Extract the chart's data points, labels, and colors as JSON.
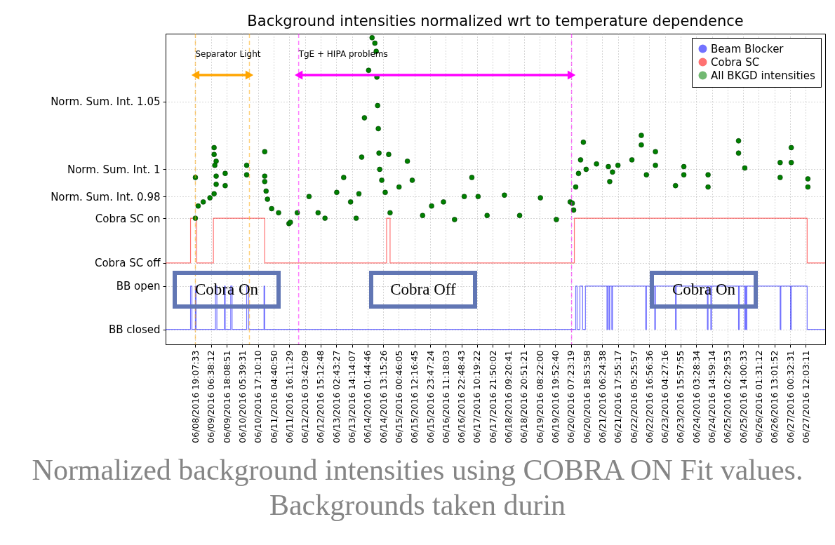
{
  "chart_data": {
    "type": "scatter",
    "title": "Background intensities normalized wrt to temperature dependence",
    "xlim": [
      "2016-06-07T21:12",
      "2016-06-28T02:19"
    ],
    "xticks": [
      {
        "value": "2016-06-08T19:07:33",
        "label": "06/08/2016 19:07:33"
      },
      {
        "value": "2016-06-09T06:38:12",
        "label": "06/09/2016 06:38:12"
      },
      {
        "value": "2016-06-09T18:08:51",
        "label": "06/09/2016 18:08:51"
      },
      {
        "value": "2016-06-10T05:39:31",
        "label": "06/10/2016 05:39:31"
      },
      {
        "value": "2016-06-10T17:10:10",
        "label": "06/10/2016 17:10:10"
      },
      {
        "value": "2016-06-11T04:40:50",
        "label": "06/11/2016 04:40:50"
      },
      {
        "value": "2016-06-11T16:11:29",
        "label": "06/11/2016 16:11:29"
      },
      {
        "value": "2016-06-12T03:42:09",
        "label": "06/12/2016 03:42:09"
      },
      {
        "value": "2016-06-12T15:12:48",
        "label": "06/12/2016 15:12:48"
      },
      {
        "value": "2016-06-13T02:43:27",
        "label": "06/13/2016 02:43:27"
      },
      {
        "value": "2016-06-13T14:14:07",
        "label": "06/13/2016 14:14:07"
      },
      {
        "value": "2016-06-14T01:44:46",
        "label": "06/14/2016 01:44:46"
      },
      {
        "value": "2016-06-14T13:15:26",
        "label": "06/14/2016 13:15:26"
      },
      {
        "value": "2016-06-15T00:46:05",
        "label": "06/15/2016 00:46:05"
      },
      {
        "value": "2016-06-15T12:16:45",
        "label": "06/15/2016 12:16:45"
      },
      {
        "value": "2016-06-15T23:47:24",
        "label": "06/15/2016 23:47:24"
      },
      {
        "value": "2016-06-16T11:18:03",
        "label": "06/16/2016 11:18:03"
      },
      {
        "value": "2016-06-16T22:48:43",
        "label": "06/16/2016 22:48:43"
      },
      {
        "value": "2016-06-17T10:19:22",
        "label": "06/17/2016 10:19:22"
      },
      {
        "value": "2016-06-17T21:50:02",
        "label": "06/17/2016 21:50:02"
      },
      {
        "value": "2016-06-18T09:20:41",
        "label": "06/18/2016 09:20:41"
      },
      {
        "value": "2016-06-18T20:51:21",
        "label": "06/18/2016 20:51:21"
      },
      {
        "value": "2016-06-19T08:22:00",
        "label": "06/19/2016 08:22:00"
      },
      {
        "value": "2016-06-19T19:52:40",
        "label": "06/19/2016 19:52:40"
      },
      {
        "value": "2016-06-20T07:23:19",
        "label": "06/20/2016 07:23:19"
      },
      {
        "value": "2016-06-20T18:53:58",
        "label": "06/20/2016 18:53:58"
      },
      {
        "value": "2016-06-21T06:24:38",
        "label": "06/21/2016 06:24:38"
      },
      {
        "value": "2016-06-21T17:55:17",
        "label": "06/21/2016 17:55:17"
      },
      {
        "value": "2016-06-22T05:25:57",
        "label": "06/22/2016 05:25:57"
      },
      {
        "value": "2016-06-22T16:56:36",
        "label": "06/22/2016 16:56:36"
      },
      {
        "value": "2016-06-23T04:27:16",
        "label": "06/23/2016 04:27:16"
      },
      {
        "value": "2016-06-23T15:57:55",
        "label": "06/23/2016 15:57:55"
      },
      {
        "value": "2016-06-24T03:28:34",
        "label": "06/24/2016 03:28:34"
      },
      {
        "value": "2016-06-24T14:59:14",
        "label": "06/24/2016 14:59:14"
      },
      {
        "value": "2016-06-25T02:29:53",
        "label": "06/25/2016 02:29:53"
      },
      {
        "value": "2016-06-25T14:00:33",
        "label": "06/25/2016 14:00:33"
      },
      {
        "value": "2016-06-26T01:31:12",
        "label": "06/26/2016 01:31:12"
      },
      {
        "value": "2016-06-26T13:01:52",
        "label": "06/26/2016 13:01:52"
      },
      {
        "value": "2016-06-27T00:32:31",
        "label": "06/27/2016 00:32:31"
      },
      {
        "value": "2016-06-27T12:03:11",
        "label": "06/27/2016 12:03:11"
      }
    ],
    "ylim": [
      0.871,
      1.1
    ],
    "yticks": [
      {
        "value": 1.05,
        "label": "Norm. Sum. Int. 1.05"
      },
      {
        "value": 1,
        "label": "Norm. Sum. Int. 1"
      },
      {
        "value": 0.98,
        "label": "Norm. Sum. Int. 0.98"
      },
      {
        "value": 0.964,
        "label": "Cobra SC on"
      },
      {
        "value": 0.931,
        "label": "Cobra SC off"
      },
      {
        "value": 0.914,
        "label": "BB open"
      },
      {
        "value": 0.882,
        "label": "BB closed"
      }
    ],
    "grid": true,
    "legend": "top right",
    "series": [
      {
        "name": "Beam Blocker",
        "type": "step",
        "color": "#0000ff",
        "x": [
          "2016-06-07T21:12",
          "2016-06-08T15:33",
          "2016-06-08T16:34",
          "2016-06-08T19:07",
          "2016-06-08T19:38",
          "2016-06-09T09:54",
          "2016-06-09T10:55",
          "2016-06-09T16:31",
          "2016-06-09T17:02",
          "2016-06-09T21:06",
          "2016-06-09T22:07",
          "2016-06-10T08:50",
          "2016-06-10T10:22",
          "2016-06-10T21:35",
          "2016-06-10T22:06",
          "2016-06-20T10:51",
          "2016-06-20T11:52",
          "2016-06-20T13:55",
          "2016-06-20T15:57",
          "2016-06-20T17:59",
          "2016-06-21T09:50",
          "2016-06-21T10:20",
          "2016-06-21T11:22",
          "2016-06-21T11:52",
          "2016-06-21T13:23",
          "2016-06-21T13:53",
          "2016-06-22T14:21",
          "2016-06-22T14:51",
          "2016-06-22T20:58",
          "2016-06-22T21:28",
          "2016-06-23T12:14",
          "2016-06-23T12:44",
          "2016-06-24T11:41",
          "2016-06-24T12:11",
          "2016-06-24T14:13",
          "2016-06-24T14:43",
          "2016-06-25T10:36",
          "2016-06-25T11:06",
          "2016-06-25T15:11",
          "2016-06-25T15:41",
          "2016-06-25T16:12",
          "2016-06-25T16:42",
          "2016-06-26T17:12",
          "2016-06-26T17:42",
          "2016-06-27T00:51",
          "2016-06-27T01:21",
          "2016-06-27T13:04",
          "2016-06-28T02:19"
        ],
        "values": [
          0.882,
          0.914,
          0.882,
          0.914,
          0.882,
          0.914,
          0.882,
          0.914,
          0.882,
          0.914,
          0.882,
          0.914,
          0.882,
          0.914,
          0.882,
          0.914,
          0.882,
          0.914,
          0.882,
          0.914,
          0.882,
          0.914,
          0.882,
          0.914,
          0.882,
          0.914,
          0.882,
          0.914,
          0.882,
          0.914,
          0.882,
          0.914,
          0.882,
          0.914,
          0.882,
          0.914,
          0.882,
          0.914,
          0.882,
          0.914,
          0.882,
          0.914,
          0.882,
          0.914,
          0.882,
          0.914,
          0.882,
          0.882
        ]
      },
      {
        "name": "Cobra SC",
        "type": "step",
        "color": "#ff0000",
        "x": [
          "2016-06-07T21:12",
          "2016-06-08T15:33",
          "2016-06-08T20:08",
          "2016-06-09T08:22",
          "2016-06-10T22:06",
          "2016-06-14T15:45",
          "2016-06-14T18:18",
          "2016-06-20T09:50",
          "2016-06-27T13:04",
          "2016-06-28T02:19"
        ],
        "values": [
          0.931,
          0.964,
          0.931,
          0.964,
          0.931,
          0.964,
          0.931,
          0.964,
          0.931,
          0.931
        ]
      },
      {
        "name": "All BKGD intensities",
        "marker": "circle",
        "color": "#008000",
        "x": [
          "2016-06-08T19:07",
          "2016-06-08T19:07",
          "2016-06-08T21:09",
          "2016-06-09T00:53",
          "2016-06-09T05:49",
          "2016-06-09T08:53",
          "2016-06-09T08:53",
          "2016-06-09T08:53",
          "2016-06-09T10:24",
          "2016-06-09T09:23",
          "2016-06-09T10:24",
          "2016-06-09T10:24",
          "2016-06-09T17:02",
          "2016-06-09T17:02",
          "2016-06-10T08:50",
          "2016-06-10T08:50",
          "2016-06-10T22:06",
          "2016-06-10T22:06",
          "2016-06-10T22:06",
          "2016-06-10T23:07",
          "2016-06-11T00:08",
          "2016-06-11T03:12",
          "2016-06-11T08:18",
          "2016-06-11T15:56",
          "2016-06-11T16:57",
          "2016-06-11T22:03",
          "2016-06-12T06:42",
          "2016-06-12T13:20",
          "2016-06-12T18:26",
          "2016-06-13T03:04",
          "2016-06-13T08:11",
          "2016-06-13T13:16",
          "2016-06-13T17:21",
          "2016-06-13T19:22",
          "2016-06-13T21:25",
          "2016-06-13T23:27",
          "2016-06-14T02:31",
          "2016-06-14T05:04",
          "2016-06-14T07:06",
          "2016-06-14T08:07",
          "2016-06-14T08:37",
          "2016-06-14T09:08",
          "2016-06-14T09:39",
          "2016-06-14T10:09",
          "2016-06-14T10:40",
          "2016-06-14T12:11",
          "2016-06-14T14:44",
          "2016-06-14T17:17",
          "2016-06-14T18:18",
          "2016-06-15T00:55",
          "2016-06-15T07:02",
          "2016-06-15T10:36",
          "2016-06-15T18:14",
          "2016-06-16T00:51",
          "2016-06-16T09:34",
          "2016-06-16T17:43",
          "2016-06-17T00:51",
          "2016-06-17T06:27",
          "2016-06-17T11:02",
          "2016-06-17T17:40",
          "2016-06-18T06:24",
          "2016-06-18T17:36",
          "2016-06-19T08:53",
          "2016-06-19T20:36",
          "2016-06-20T06:46",
          "2016-06-20T08:18",
          "2016-06-20T09:19",
          "2016-06-20T10:51",
          "2016-06-20T12:54",
          "2016-06-20T14:25",
          "2016-06-20T16:28",
          "2016-06-20T18:30",
          "2016-06-21T02:08",
          "2016-06-21T10:50",
          "2016-06-21T11:51",
          "2016-06-21T13:54",
          "2016-06-21T17:55",
          "2016-06-22T04:10",
          "2016-06-22T11:05",
          "2016-06-22T11:05",
          "2016-06-22T14:51",
          "2016-06-22T21:29",
          "2016-06-22T21:29",
          "2016-06-23T12:14",
          "2016-06-23T18:22",
          "2016-06-23T18:22",
          "2016-06-24T12:11",
          "2016-06-24T12:11",
          "2016-06-25T10:36",
          "2016-06-25T10:36",
          "2016-06-25T15:11",
          "2016-06-26T17:12",
          "2016-06-26T17:12",
          "2016-06-27T01:22",
          "2016-06-27T01:22",
          "2016-06-27T13:35",
          "2016-06-27T13:35"
        ],
        "values": [
          0.994,
          0.964,
          0.973,
          0.976,
          0.979,
          0.982,
          1.016,
          1.011,
          1.006,
          1.003,
          0.995,
          0.989,
          0.997,
          0.988,
          1.003,
          0.996,
          1.013,
          0.995,
          0.991,
          0.984,
          0.978,
          0.971,
          0.968,
          0.96,
          0.961,
          0.968,
          0.98,
          0.968,
          0.964,
          0.983,
          0.994,
          0.976,
          0.964,
          0.982,
          1.009,
          1.038,
          1.073,
          1.097,
          1.093,
          1.087,
          1.068,
          1.047,
          1.03,
          1.012,
          1.0,
          0.992,
          0.983,
          1.011,
          0.968,
          0.987,
          1.006,
          0.992,
          0.966,
          0.973,
          0.976,
          0.963,
          0.98,
          0.994,
          0.98,
          0.966,
          0.981,
          0.966,
          0.979,
          0.963,
          0.976,
          0.975,
          0.97,
          0.987,
          0.997,
          1.007,
          1.02,
          1.0,
          1.004,
          1.002,
          0.991,
          0.998,
          1.003,
          1.007,
          1.025,
          1.018,
          0.996,
          1.013,
          1.003,
          0.988,
          1.002,
          0.996,
          0.996,
          0.987,
          1.021,
          1.012,
          1.001,
          1.005,
          0.994,
          1.016,
          1.005,
          0.993,
          0.987
        ]
      }
    ],
    "ref_lines": [
      {
        "axis": "x",
        "value": "2016-06-08T19:07",
        "color": "#ffa500",
        "line_style": "dashed"
      },
      {
        "axis": "x",
        "value": "2016-06-10T10:52",
        "color": "#ffa500",
        "line_style": "dashed"
      },
      {
        "axis": "x",
        "value": "2016-06-11T23:04",
        "color": "#ff00ff",
        "line_style": "dashed"
      },
      {
        "axis": "x",
        "value": "2016-06-20T07:48",
        "color": "#ff00ff",
        "line_style": "dashed"
      }
    ],
    "annotations": [
      {
        "text": "Separator Light",
        "x": "2016-06-08T19:07",
        "y": 1.085
      },
      {
        "text": "TgE + HIPA problems",
        "x": "2016-06-11T23:04",
        "y": 1.085
      },
      "Cobra On",
      "Cobra Off",
      "Cobra On",
      "Normalized background intensities using COBRA ON Fit values. Backgrounds taken durin"
    ]
  }
}
